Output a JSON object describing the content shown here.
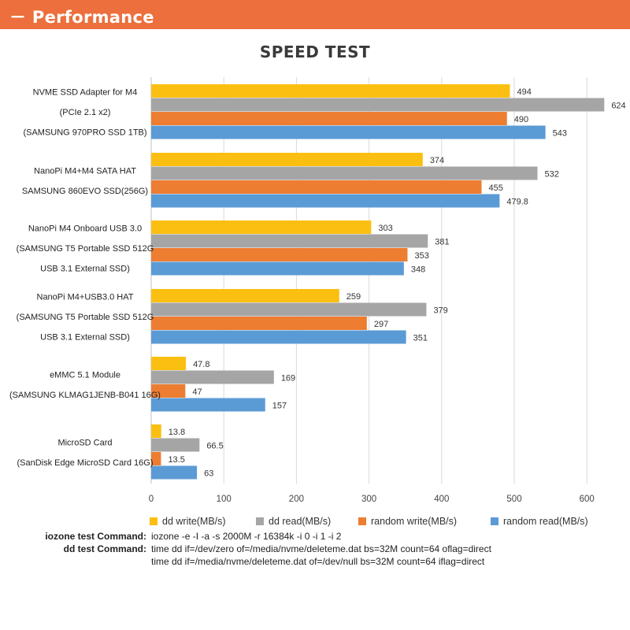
{
  "header": {
    "title": "－ Performance"
  },
  "chart_data": {
    "type": "bar",
    "orientation": "horizontal",
    "title": "SPEED TEST",
    "xlabel": "",
    "ylabel": "",
    "xlim": [
      0,
      650
    ],
    "xticks": [
      0,
      100,
      200,
      300,
      400,
      500,
      600
    ],
    "grid": true,
    "legend_position": "bottom",
    "categories": [
      [
        "NVME SSD Adapter for M4",
        "(PCIe 2.1 x2)",
        "(SAMSUNG 970PRO SSD 1TB)"
      ],
      [
        "NanoPi M4+M4 SATA HAT",
        "SAMSUNG 860EVO SSD(256G)"
      ],
      [
        "NanoPi M4 Onboard USB 3.0",
        "(SAMSUNG T5 Portable SSD 512G",
        "USB 3.1 External SSD)"
      ],
      [
        "NanoPi M4+USB3.0 HAT",
        "(SAMSUNG T5 Portable SSD 512G",
        "USB 3.1 External SSD)"
      ],
      [
        "eMMC 5.1 Module",
        "(SAMSUNG KLMAG1JENB-B041 16G)"
      ],
      [
        "MicroSD Card",
        "(SanDisk Edge MicroSD Card 16G)"
      ]
    ],
    "series": [
      {
        "name": "dd write(MB/s)",
        "color": "#fbbf12",
        "values": [
          494,
          374,
          303,
          259,
          47.8,
          13.8
        ]
      },
      {
        "name": "dd read(MB/s)",
        "color": "#a5a5a5",
        "values": [
          624,
          532,
          381,
          379,
          169,
          66.5
        ]
      },
      {
        "name": "random write(MB/s)",
        "color": "#ed7d31",
        "values": [
          490,
          455,
          353,
          297,
          47,
          13.5
        ]
      },
      {
        "name": "random read(MB/s)",
        "color": "#5b9bd5",
        "values": [
          543,
          479.8,
          348,
          351,
          157,
          63
        ]
      }
    ]
  },
  "commands": {
    "iozone_label": "iozone test Command:",
    "iozone_value": "iozone -e -I -a -s 2000M -r 16384k -i 0 -i 1 -i 2",
    "dd_label": "dd test Command:",
    "dd_value_1": "time dd if=/dev/zero of=/media/nvme/deleteme.dat bs=32M count=64 oflag=direct",
    "dd_value_2": "time dd if=/media/nvme/deleteme.dat of=/dev/null bs=32M count=64 iflag=direct"
  }
}
